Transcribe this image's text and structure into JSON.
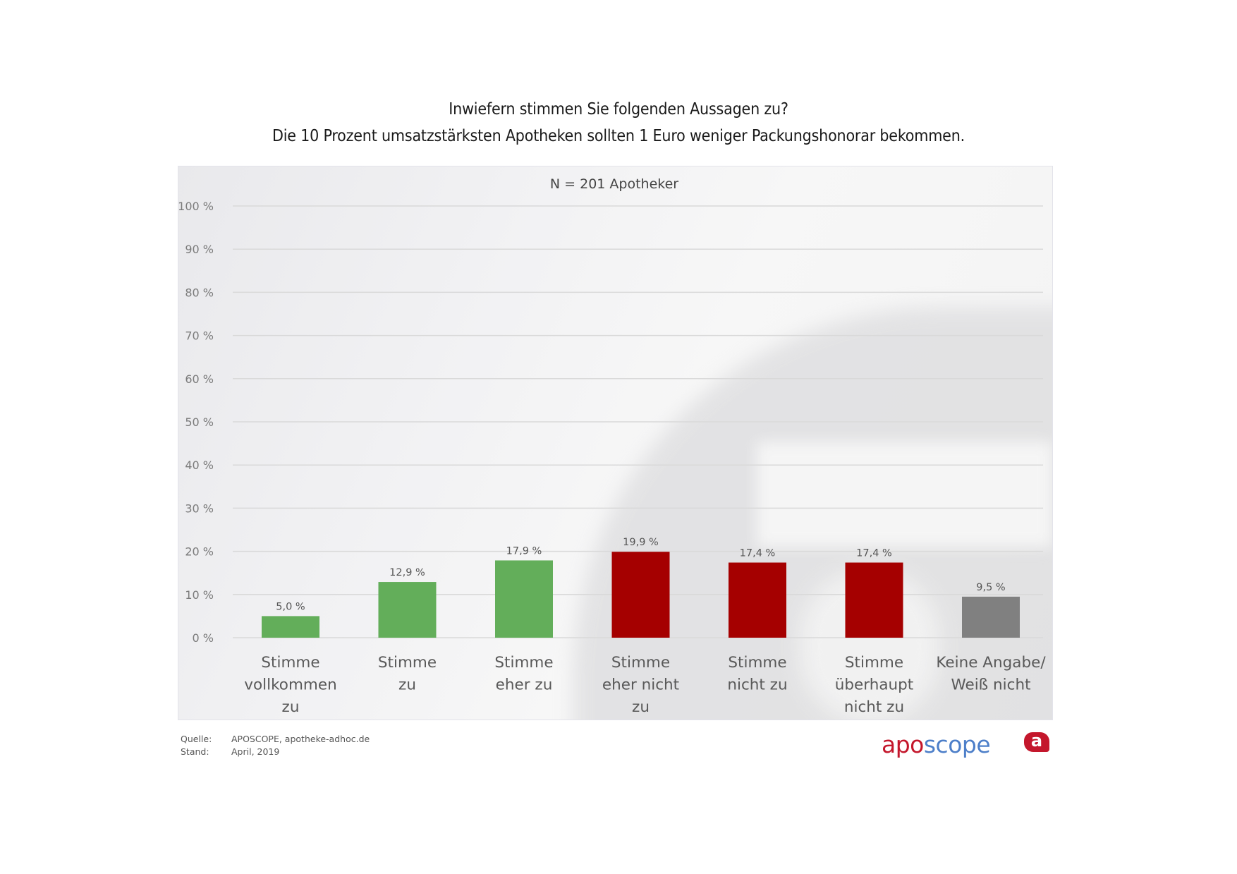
{
  "title_line1": "Inwiefern stimmen Sie folgenden Aussagen zu?",
  "title_line2": "Die 10 Prozent umsatzstärksten Apotheken sollten 1 Euro weniger Packungshonorar bekommen.",
  "footer": {
    "source_label": "Quelle:",
    "source_value": "APOSCOPE, apotheke-adhoc.de",
    "date_label": "Stand:",
    "date_value": "April, 2019"
  },
  "logo": {
    "part1": "apo",
    "part2": "scope",
    "badge": "a"
  },
  "colors": {
    "agree": "#63ae5a",
    "disagree": "#a50000",
    "neutral": "#808080",
    "logo_red": "#c4172c",
    "logo_blue": "#4d7fc9"
  },
  "chart_data": {
    "type": "bar",
    "title": "Inwiefern stimmen Sie folgenden Aussagen zu? Die 10 Prozent umsatzstärksten Apotheken sollten 1 Euro weniger Packungshonorar bekommen.",
    "subtitle": "N = 201 Apotheker",
    "xlabel": "",
    "ylabel": "",
    "ylim": [
      0,
      100
    ],
    "yticks": [
      0,
      10,
      20,
      30,
      40,
      50,
      60,
      70,
      80,
      90,
      100
    ],
    "ytick_labels": [
      "0 %",
      "10 %",
      "20 %",
      "30 %",
      "40 %",
      "50 %",
      "60 %",
      "70 %",
      "80 %",
      "90 %",
      "100 %"
    ],
    "grid": true,
    "legend": "none",
    "categories": [
      [
        "Stimme",
        "vollkommen",
        "zu"
      ],
      [
        "Stimme",
        "zu"
      ],
      [
        "Stimme",
        "eher zu"
      ],
      [
        "Stimme",
        "eher nicht",
        "zu"
      ],
      [
        "Stimme",
        "nicht zu"
      ],
      [
        "Stimme",
        "überhaupt",
        "nicht zu"
      ],
      [
        "Keine Angabe/",
        "Weiß nicht"
      ]
    ],
    "values": [
      5.0,
      12.9,
      17.9,
      19.9,
      17.4,
      17.4,
      9.5
    ],
    "value_labels": [
      "5,0 %",
      "12,9 %",
      "17,9 %",
      "19,9 %",
      "17,4 %",
      "17,4 %",
      "9,5 %"
    ],
    "bar_groups": [
      "agree",
      "agree",
      "agree",
      "disagree",
      "disagree",
      "disagree",
      "neutral"
    ]
  }
}
